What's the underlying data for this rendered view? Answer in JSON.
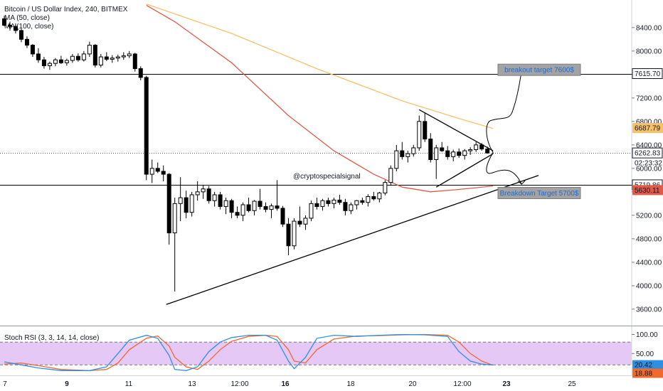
{
  "header": {
    "title": "Bitcoin / US Dollar Index, 240, BITMEX",
    "ma50_label": "MA (50, close)",
    "ma100_label": "MA (100, close)"
  },
  "stoch": {
    "label": "Stoch RSI (3, 3, 14, 14, close)",
    "yticks": [
      "100.00",
      "50.00"
    ],
    "k_value": "20.42",
    "d_value": "18.88",
    "band_upper": 80,
    "band_lower": 20
  },
  "annotations": {
    "breakout_label": "breakout target 7600$",
    "breakdown_label": "Breakdown Target 5700$",
    "watermark": "@cryptospecialsignal"
  },
  "price_tags": {
    "level_top": "7615.70",
    "ma100": "6687.79",
    "last": "6262.83",
    "countdown": "02:23:32",
    "level_bottom": "5719.86",
    "ma50": "5630.11"
  },
  "colors": {
    "bull": "#ffffff",
    "bear": "#000000",
    "ma50": "#e05a4a",
    "ma100": "#f5c26b",
    "stoch_k": "#2f8fe0",
    "stoch_d": "#f06a2e",
    "stoch_band": "#e6c8f6",
    "target_box": "#a3a3a3",
    "target_text": "#1e6ad1"
  },
  "chart_data": {
    "type": "candlestick",
    "xlabels": [
      "7",
      "9",
      "11",
      "13",
      "12:00",
      "16",
      "18",
      "20",
      "12:00",
      "23",
      "25"
    ],
    "yticks": [
      3600,
      4000,
      4400,
      4800,
      5200,
      5600,
      6000,
      6400,
      6800,
      7200,
      7600,
      8000,
      8400
    ],
    "ylim": [
      3320,
      8870
    ],
    "horizontal_levels": [
      7615.7,
      5719.86
    ],
    "candles": [
      [
        8550,
        8600,
        8420,
        8440
      ],
      [
        8440,
        8500,
        8350,
        8420
      ],
      [
        8420,
        8470,
        8300,
        8350
      ],
      [
        8350,
        8380,
        8150,
        8200
      ],
      [
        8200,
        8250,
        8050,
        8100
      ],
      [
        8100,
        8120,
        7900,
        7950
      ],
      [
        7950,
        8050,
        7800,
        7850
      ],
      [
        7850,
        7900,
        7700,
        7750
      ],
      [
        7750,
        7820,
        7680,
        7790
      ],
      [
        7790,
        7880,
        7740,
        7850
      ],
      [
        7850,
        7920,
        7780,
        7800
      ],
      [
        7800,
        7870,
        7750,
        7840
      ],
      [
        7840,
        7950,
        7800,
        7910
      ],
      [
        7910,
        7960,
        7820,
        7850
      ],
      [
        7850,
        8000,
        7820,
        7950
      ],
      [
        7950,
        8160,
        7900,
        8100
      ],
      [
        8100,
        8120,
        7720,
        7760
      ],
      [
        7760,
        7950,
        7720,
        7900
      ],
      [
        7900,
        7980,
        7830,
        7860
      ],
      [
        7860,
        7930,
        7800,
        7880
      ],
      [
        7880,
        7940,
        7820,
        7900
      ],
      [
        7900,
        7980,
        7850,
        7920
      ],
      [
        7920,
        8000,
        7880,
        7950
      ],
      [
        7950,
        7970,
        7650,
        7700
      ],
      [
        7700,
        7740,
        7500,
        7550
      ],
      [
        7550,
        7580,
        5800,
        5900
      ],
      [
        5900,
        6150,
        5750,
        6000
      ],
      [
        6000,
        6100,
        5920,
        5950
      ],
      [
        5950,
        6050,
        5780,
        5900
      ],
      [
        5900,
        5920,
        4700,
        4900
      ],
      [
        4900,
        5500,
        3900,
        5400
      ],
      [
        5400,
        5850,
        5100,
        5500
      ],
      [
        5500,
        5620,
        5150,
        5250
      ],
      [
        5250,
        5600,
        5180,
        5550
      ],
      [
        5550,
        5780,
        5450,
        5600
      ],
      [
        5600,
        5720,
        5480,
        5650
      ],
      [
        5650,
        5700,
        5400,
        5450
      ],
      [
        5450,
        5600,
        5350,
        5550
      ],
      [
        5550,
        5600,
        5300,
        5350
      ],
      [
        5350,
        5500,
        5220,
        5450
      ],
      [
        5450,
        5480,
        5150,
        5250
      ],
      [
        5250,
        5350,
        5150,
        5200
      ],
      [
        5200,
        5420,
        5100,
        5380
      ],
      [
        5380,
        5500,
        5250,
        5280
      ],
      [
        5280,
        5460,
        5200,
        5440
      ],
      [
        5440,
        5650,
        5300,
        5350
      ],
      [
        5350,
        5420,
        5250,
        5300
      ],
      [
        5300,
        5400,
        5150,
        5360
      ],
      [
        5360,
        5800,
        5280,
        5320
      ],
      [
        5320,
        5360,
        5000,
        5050
      ],
      [
        5050,
        5150,
        4520,
        4680
      ],
      [
        4680,
        5150,
        4620,
        5100
      ],
      [
        5100,
        5350,
        5000,
        5050
      ],
      [
        5050,
        5200,
        4950,
        5150
      ],
      [
        5150,
        5450,
        5100,
        5400
      ],
      [
        5400,
        5500,
        5300,
        5350
      ],
      [
        5350,
        5480,
        5280,
        5450
      ],
      [
        5450,
        5500,
        5350,
        5400
      ],
      [
        5400,
        5500,
        5320,
        5460
      ],
      [
        5460,
        5550,
        5380,
        5420
      ],
      [
        5420,
        5480,
        5200,
        5280
      ],
      [
        5280,
        5420,
        5220,
        5380
      ],
      [
        5380,
        5460,
        5300,
        5450
      ],
      [
        5450,
        5500,
        5380,
        5420
      ],
      [
        5420,
        5560,
        5350,
        5520
      ],
      [
        5520,
        5600,
        5450,
        5480
      ],
      [
        5480,
        5600,
        5420,
        5580
      ],
      [
        5580,
        5800,
        5540,
        5760
      ],
      [
        5760,
        6050,
        5720,
        6000
      ],
      [
        6000,
        6400,
        5950,
        6300
      ],
      [
        6300,
        6450,
        6150,
        6200
      ],
      [
        6200,
        6300,
        6100,
        6250
      ],
      [
        6250,
        6400,
        6200,
        6350
      ],
      [
        6350,
        6900,
        6300,
        6800
      ],
      [
        6800,
        6950,
        6450,
        6500
      ],
      [
        6500,
        6600,
        6100,
        6150
      ],
      [
        6150,
        6400,
        5820,
        6350
      ],
      [
        6350,
        6450,
        6280,
        6300
      ],
      [
        6300,
        6380,
        6150,
        6200
      ],
      [
        6200,
        6320,
        6120,
        6280
      ],
      [
        6280,
        6340,
        6180,
        6220
      ],
      [
        6220,
        6330,
        6150,
        6300
      ],
      [
        6300,
        6360,
        6230,
        6320
      ],
      [
        6320,
        6450,
        6280,
        6400
      ],
      [
        6400,
        6430,
        6300,
        6330
      ],
      [
        6330,
        6370,
        6250,
        6263
      ]
    ],
    "ma50": [
      [
        25,
        8780
      ],
      [
        30,
        8500
      ],
      [
        40,
        7800
      ],
      [
        50,
        6900
      ],
      [
        58,
        6300
      ],
      [
        65,
        5900
      ],
      [
        70,
        5680
      ],
      [
        75,
        5600
      ],
      [
        80,
        5640
      ],
      [
        86,
        5700
      ]
    ],
    "ma100": [
      [
        25,
        8800
      ],
      [
        40,
        8300
      ],
      [
        55,
        7700
      ],
      [
        70,
        7150
      ],
      [
        80,
        6850
      ],
      [
        86,
        6680
      ]
    ],
    "stoch_k": [
      [
        0,
        28
      ],
      [
        3,
        20
      ],
      [
        6,
        12
      ],
      [
        10,
        5
      ],
      [
        15,
        5
      ],
      [
        18,
        15
      ],
      [
        20,
        50
      ],
      [
        22,
        85
      ],
      [
        25,
        98
      ],
      [
        27,
        90
      ],
      [
        29,
        45
      ],
      [
        30,
        8
      ],
      [
        32,
        5
      ],
      [
        34,
        15
      ],
      [
        36,
        55
      ],
      [
        38,
        80
      ],
      [
        40,
        92
      ],
      [
        43,
        98
      ],
      [
        46,
        98
      ],
      [
        48,
        85
      ],
      [
        50,
        30
      ],
      [
        51,
        10
      ],
      [
        53,
        40
      ],
      [
        55,
        90
      ],
      [
        58,
        98
      ],
      [
        62,
        95
      ],
      [
        66,
        98
      ],
      [
        70,
        100
      ],
      [
        74,
        99
      ],
      [
        78,
        95
      ],
      [
        80,
        55
      ],
      [
        82,
        30
      ],
      [
        84,
        22
      ],
      [
        86,
        20
      ]
    ],
    "stoch_d": [
      [
        0,
        22
      ],
      [
        3,
        25
      ],
      [
        6,
        18
      ],
      [
        10,
        8
      ],
      [
        15,
        5
      ],
      [
        18,
        8
      ],
      [
        20,
        25
      ],
      [
        22,
        60
      ],
      [
        25,
        90
      ],
      [
        27,
        96
      ],
      [
        29,
        70
      ],
      [
        30,
        40
      ],
      [
        32,
        15
      ],
      [
        34,
        8
      ],
      [
        36,
        30
      ],
      [
        38,
        60
      ],
      [
        40,
        82
      ],
      [
        43,
        95
      ],
      [
        46,
        98
      ],
      [
        48,
        95
      ],
      [
        50,
        60
      ],
      [
        51,
        30
      ],
      [
        53,
        25
      ],
      [
        55,
        60
      ],
      [
        58,
        88
      ],
      [
        62,
        96
      ],
      [
        66,
        97
      ],
      [
        70,
        99
      ],
      [
        74,
        100
      ],
      [
        78,
        98
      ],
      [
        80,
        80
      ],
      [
        82,
        50
      ],
      [
        84,
        30
      ],
      [
        86,
        19
      ]
    ]
  }
}
